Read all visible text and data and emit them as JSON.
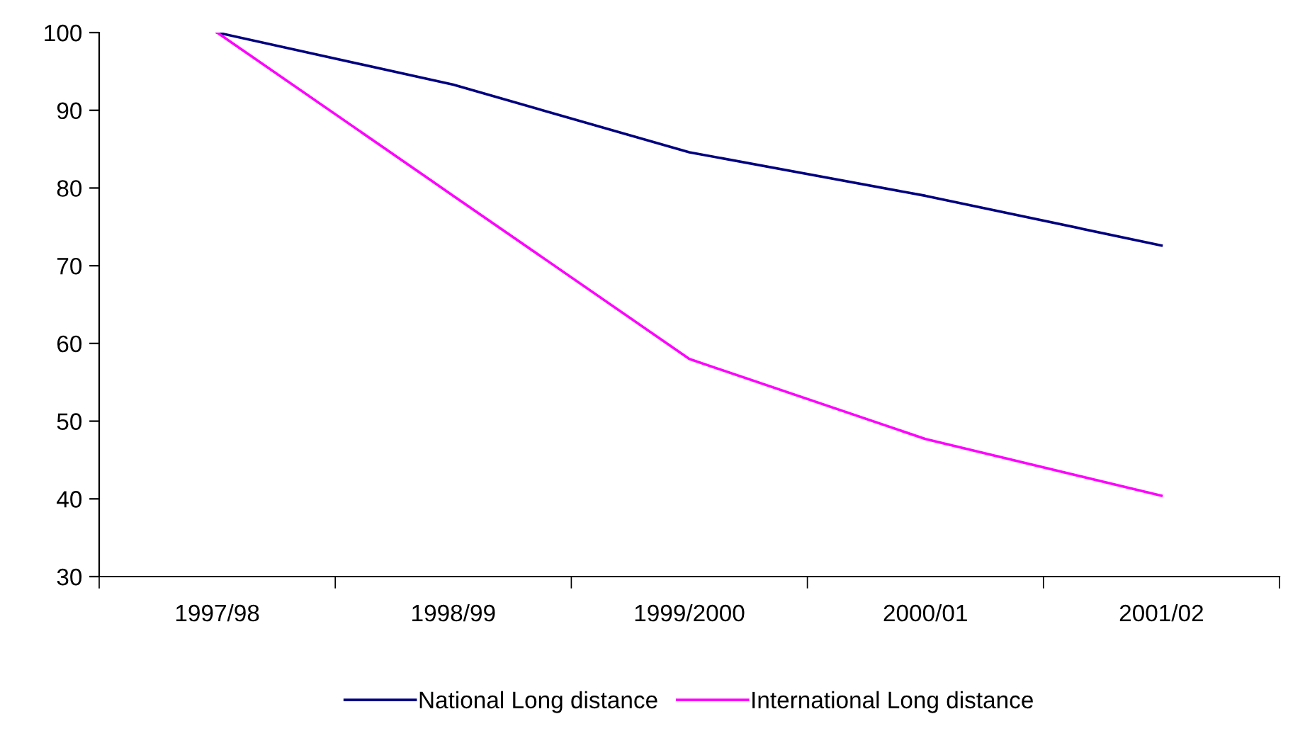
{
  "chart_data": {
    "type": "line",
    "categories": [
      "1997/98",
      "1998/99",
      "1999/2000",
      "2000/01",
      "2001/02"
    ],
    "series": [
      {
        "name": "National Long distance",
        "color": "#000080",
        "values": [
          100,
          93.3,
          84.6,
          79,
          72.6
        ]
      },
      {
        "name": "International Long distance",
        "color": "#ff00ff",
        "values": [
          100,
          79,
          58,
          47.7,
          40.4
        ]
      }
    ],
    "ylim": [
      30,
      100
    ],
    "yticks": [
      30,
      40,
      50,
      60,
      70,
      80,
      90,
      100
    ],
    "grid": false,
    "legend": "bottom",
    "marker": "none",
    "line_style": "solid"
  }
}
